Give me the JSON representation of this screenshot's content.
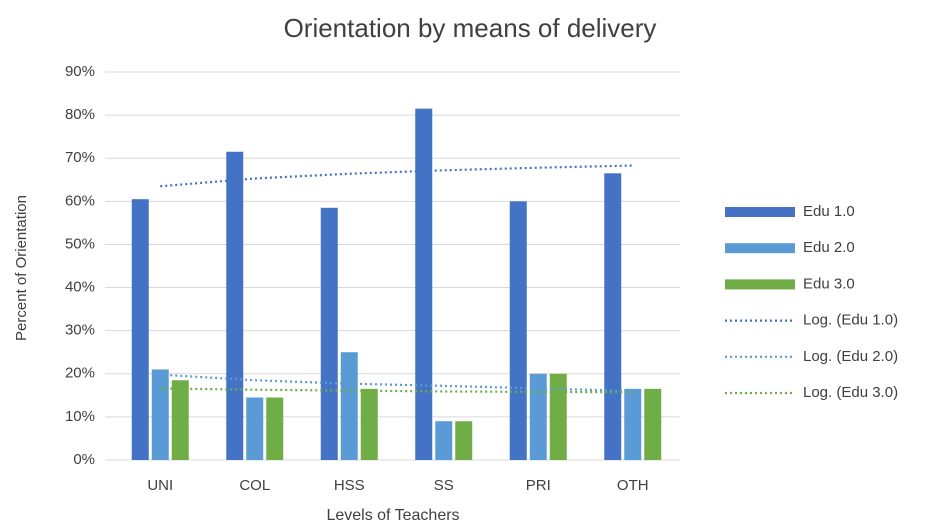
{
  "chart_data": {
    "type": "bar",
    "title": "Orientation by means of delivery",
    "x_label": "Levels of Teachers",
    "y_label": "Percent of Orientation",
    "categories": [
      "UNI",
      "COL",
      "HSS",
      "SS",
      "PRI",
      "OTH"
    ],
    "series": [
      {
        "name": "Edu 1.0",
        "type": "bar",
        "color": "#4472c4",
        "values": [
          60.5,
          71.5,
          58.5,
          81.5,
          60,
          66.5
        ]
      },
      {
        "name": "Edu 2.0",
        "type": "bar",
        "color": "#5b9bd5",
        "values": [
          21,
          14.5,
          25,
          9,
          20,
          16.5
        ]
      },
      {
        "name": "Edu 3.0",
        "type": "bar",
        "color": "#70ad47",
        "values": [
          18.5,
          14.5,
          16.5,
          9,
          20,
          16.5
        ]
      },
      {
        "name": "Log. (Edu 1.0)",
        "type": "line",
        "line_style": "dotted",
        "color": "#4472c4",
        "values": [
          63.5,
          65.3,
          66.4,
          67.2,
          67.8,
          68.3
        ]
      },
      {
        "name": "Log. (Edu 2.0)",
        "type": "line",
        "line_style": "dotted",
        "color": "#5b9bd5",
        "values": [
          19.8,
          18.5,
          17.7,
          17.2,
          16.6,
          16.0
        ]
      },
      {
        "name": "Log. (Edu 3.0)",
        "type": "line",
        "line_style": "dotted",
        "color": "#70ad47",
        "values": [
          16.6,
          16.3,
          16.1,
          15.9,
          15.8,
          15.7
        ]
      }
    ],
    "ylim": [
      0,
      90
    ],
    "yticks": [
      {
        "value": 0,
        "label": "0%"
      },
      {
        "value": 10,
        "label": "10%"
      },
      {
        "value": 20,
        "label": "20%"
      },
      {
        "value": 30,
        "label": "30%"
      },
      {
        "value": 40,
        "label": "40%"
      },
      {
        "value": 50,
        "label": "50%"
      },
      {
        "value": 60,
        "label": "60%"
      },
      {
        "value": 70,
        "label": "70%"
      },
      {
        "value": 80,
        "label": "80%"
      },
      {
        "value": 90,
        "label": "90%"
      }
    ],
    "grid": true,
    "legend": "right"
  }
}
